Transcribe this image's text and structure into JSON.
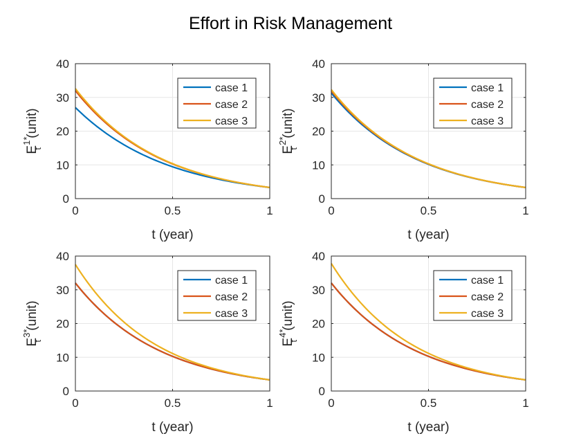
{
  "figure_title": "Effort in Risk Management",
  "chart_data": [
    {
      "type": "line",
      "ylabel": {
        "base": "E",
        "sup": "1*",
        "sub": "t",
        "unit": " (unit)"
      },
      "xlabel": "t (year)",
      "xlim": [
        0,
        1
      ],
      "ylim": [
        0,
        40
      ],
      "xticks": [
        0,
        0.5,
        1
      ],
      "xtick_labels": [
        "0",
        "0.5",
        "1"
      ],
      "yticks": [
        0,
        10,
        20,
        30,
        40
      ],
      "ytick_labels": [
        "0",
        "10",
        "20",
        "30",
        "40"
      ],
      "grid": true,
      "legend_position": "top-right",
      "series": [
        {
          "name": "case 1",
          "color": "#0072BD",
          "start": 27.0,
          "end": 3.3
        },
        {
          "name": "case 2",
          "color": "#D95319",
          "start": 32.0,
          "end": 3.3
        },
        {
          "name": "case 3",
          "color": "#EDB120",
          "start": 32.6,
          "end": 3.3
        }
      ]
    },
    {
      "type": "line",
      "ylabel": {
        "base": "E",
        "sup": "2*",
        "sub": "t",
        "unit": " (unit)"
      },
      "xlabel": "t (year)",
      "xlim": [
        0,
        1
      ],
      "ylim": [
        0,
        40
      ],
      "xticks": [
        0,
        0.5,
        1
      ],
      "xtick_labels": [
        "0",
        "0.5",
        "1"
      ],
      "yticks": [
        0,
        10,
        20,
        30,
        40
      ],
      "ytick_labels": [
        "0",
        "10",
        "20",
        "30",
        "40"
      ],
      "grid": true,
      "legend_position": "top-right",
      "series": [
        {
          "name": "case 1",
          "color": "#0072BD",
          "start": 31.3,
          "end": 3.3
        },
        {
          "name": "case 2",
          "color": "#D95319",
          "start": 31.9,
          "end": 3.3
        },
        {
          "name": "case 3",
          "color": "#EDB120",
          "start": 32.3,
          "end": 3.3
        }
      ]
    },
    {
      "type": "line",
      "ylabel": {
        "base": "E",
        "sup": "3*",
        "sub": "t",
        "unit": " (unit)"
      },
      "xlabel": "t (year)",
      "xlim": [
        0,
        1
      ],
      "ylim": [
        0,
        40
      ],
      "xticks": [
        0,
        0.5,
        1
      ],
      "xtick_labels": [
        "0",
        "0.5",
        "1"
      ],
      "yticks": [
        0,
        10,
        20,
        30,
        40
      ],
      "ytick_labels": [
        "0",
        "10",
        "20",
        "30",
        "40"
      ],
      "grid": true,
      "legend_position": "top-right",
      "series": [
        {
          "name": "case 1",
          "color": "#0072BD",
          "start": 32.0,
          "end": 3.3
        },
        {
          "name": "case 2",
          "color": "#D95319",
          "start": 32.0,
          "end": 3.3
        },
        {
          "name": "case 3",
          "color": "#EDB120",
          "start": 37.5,
          "end": 3.3
        }
      ]
    },
    {
      "type": "line",
      "ylabel": {
        "base": "E",
        "sup": "4*",
        "sub": "t",
        "unit": " (unit)"
      },
      "xlabel": "t (year)",
      "xlim": [
        0,
        1
      ],
      "ylim": [
        0,
        40
      ],
      "xticks": [
        0,
        0.5,
        1
      ],
      "xtick_labels": [
        "0",
        "0.5",
        "1"
      ],
      "yticks": [
        0,
        10,
        20,
        30,
        40
      ],
      "ytick_labels": [
        "0",
        "10",
        "20",
        "30",
        "40"
      ],
      "grid": true,
      "legend_position": "top-right",
      "series": [
        {
          "name": "case 1",
          "color": "#0072BD",
          "start": 32.0,
          "end": 3.3
        },
        {
          "name": "case 2",
          "color": "#D95319",
          "start": 32.0,
          "end": 3.3
        },
        {
          "name": "case 3",
          "color": "#EDB120",
          "start": 37.8,
          "end": 3.3
        }
      ]
    }
  ]
}
